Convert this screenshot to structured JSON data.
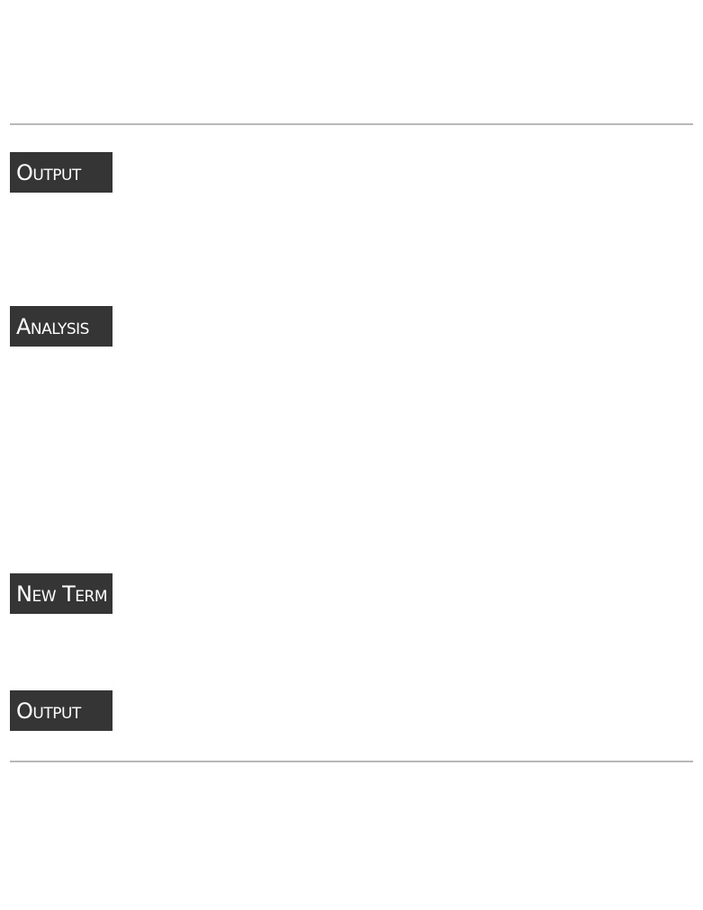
{
  "sidebar_tags": [
    {
      "label": "Output"
    },
    {
      "label": "Analysis"
    },
    {
      "label": "New Term"
    },
    {
      "label": "Output"
    }
  ],
  "colors": {
    "tag_background": "#353535",
    "tag_text": "#ffffff",
    "rule": "#b8b8b8",
    "page_background": "#ffffff"
  }
}
